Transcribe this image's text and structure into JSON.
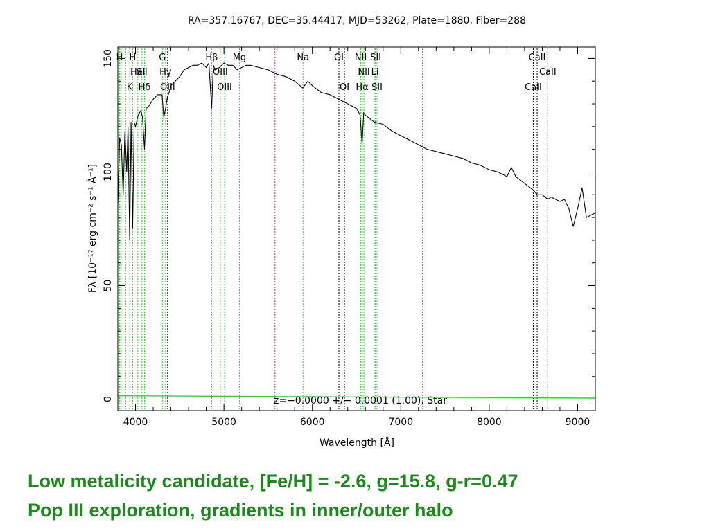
{
  "chart_data": {
    "type": "line",
    "title": "RA=357.16767, DEC=35.44417, MJD=53262, Plate=1880, Fiber=288",
    "xlabel": "Wavelength [Å]",
    "ylabel": "Fλ [10⁻¹⁷ erg cm⁻² s⁻¹ Å⁻¹]",
    "xlim": [
      3800,
      9200
    ],
    "ylim": [
      -5,
      155
    ],
    "x_ticks": [
      4000,
      5000,
      6000,
      7000,
      8000,
      9000
    ],
    "y_ticks": [
      0,
      50,
      100,
      150
    ],
    "annotation": "z=−0.0000 +/− 0.0001 (1.00), Star",
    "series": [
      {
        "color": "#000000",
        "x": [
          3800,
          3820,
          3840,
          3860,
          3880,
          3900,
          3915,
          3934,
          3950,
          3968,
          3985,
          4000,
          4030,
          4060,
          4080,
          4102,
          4120,
          4150,
          4200,
          4250,
          4300,
          4320,
          4340,
          4360,
          4380,
          4400,
          4450,
          4500,
          4550,
          4600,
          4650,
          4700,
          4750,
          4800,
          4830,
          4861,
          4880,
          4900,
          4950,
          5000,
          5050,
          5100,
          5150,
          5200,
          5250,
          5300,
          5400,
          5500,
          5600,
          5700,
          5800,
          5890,
          5950,
          6000,
          6100,
          6200,
          6300,
          6400,
          6500,
          6540,
          6563,
          6580,
          6600,
          6700,
          6800,
          6900,
          7000,
          7100,
          7200,
          7300,
          7400,
          7500,
          7600,
          7700,
          7800,
          7900,
          8000,
          8100,
          8200,
          8250,
          8300,
          8400,
          8500,
          8542,
          8600,
          8662,
          8700,
          8800,
          8850,
          8900,
          8950,
          9000,
          9050,
          9100,
          9150,
          9200
        ],
        "y": [
          85,
          115,
          112,
          90,
          118,
          100,
          120,
          70,
          122,
          75,
          122,
          120,
          125,
          127,
          124,
          110,
          128,
          129,
          132,
          134,
          134,
          124,
          128,
          133,
          135,
          138,
          140,
          142,
          145,
          146,
          147,
          147,
          148,
          146,
          148,
          128,
          147,
          145,
          146,
          148,
          147,
          147,
          145,
          146,
          147,
          147,
          146,
          145,
          143,
          142,
          140,
          137,
          140,
          138,
          135,
          134,
          132,
          130,
          128,
          125,
          112,
          126,
          125,
          122,
          121,
          118,
          116,
          114,
          112,
          110,
          109,
          108,
          107,
          106,
          104,
          103,
          101,
          100,
          98,
          102,
          98,
          95,
          92,
          90,
          90,
          88,
          89,
          87,
          88,
          84,
          76,
          84,
          93,
          80,
          81,
          82
        ]
      },
      {
        "color": "#33cc33",
        "x": [
          3800,
          9200
        ],
        "y": [
          1.5,
          0.5
        ]
      }
    ],
    "lines": [
      {
        "x": 3820,
        "label": "H",
        "row": 1,
        "color": "#33cc33"
      },
      {
        "x": 3835,
        "label": "",
        "row": 1,
        "color": "#33cc33"
      },
      {
        "x": 3889,
        "label": "",
        "row": 1,
        "color": "#33cc33"
      },
      {
        "x": 3934,
        "label": "K",
        "row": 3,
        "color": "#33cc33"
      },
      {
        "x": 3968,
        "label": "H",
        "row": 1,
        "color": "#33cc33"
      },
      {
        "x": 4026,
        "label": "HeI",
        "row": 2,
        "color": "#33cc33"
      },
      {
        "x": 4072,
        "label": "SII",
        "row": 2,
        "color": "#33cc33"
      },
      {
        "x": 4102,
        "label": "Hδ",
        "row": 3,
        "color": "#33cc33"
      },
      {
        "x": 4304,
        "label": "G",
        "row": 1,
        "color": "#33cc33"
      },
      {
        "x": 4340,
        "label": "Hγ",
        "row": 2,
        "color": "#33cc33"
      },
      {
        "x": 4363,
        "label": "OIII",
        "row": 3,
        "color": "#000000"
      },
      {
        "x": 4861,
        "label": "Hβ",
        "row": 1,
        "color": "#33cc33"
      },
      {
        "x": 4959,
        "label": "OIII",
        "row": 2,
        "color": "#33cc33"
      },
      {
        "x": 5007,
        "label": "OIII",
        "row": 3,
        "color": "#33cc33"
      },
      {
        "x": 5175,
        "label": "Mg",
        "row": 1,
        "color": "#33cc33"
      },
      {
        "x": 5577,
        "label": "",
        "row": 1,
        "color": "#cc33cc"
      },
      {
        "x": 5894,
        "label": "Na",
        "row": 1,
        "color": "#33cc33"
      },
      {
        "x": 6300,
        "label": "OI",
        "row": 1,
        "color": "#000000"
      },
      {
        "x": 6363,
        "label": "OI",
        "row": 3,
        "color": "#000000"
      },
      {
        "x": 6548,
        "label": "NII",
        "row": 1,
        "color": "#33cc33"
      },
      {
        "x": 6563,
        "label": "Hα",
        "row": 3,
        "color": "#33cc33"
      },
      {
        "x": 6583,
        "label": "NII",
        "row": 2,
        "color": "#33cc33"
      },
      {
        "x": 6708,
        "label": "Li",
        "row": 2,
        "color": "#33cc33"
      },
      {
        "x": 6716,
        "label": "SII",
        "row": 1,
        "color": "#33cc33"
      },
      {
        "x": 6731,
        "label": "SII",
        "row": 3,
        "color": "#33cc33"
      },
      {
        "x": 7246,
        "label": "",
        "row": 1,
        "color": "#cc33cc"
      },
      {
        "x": 8498,
        "label": "CaII",
        "row": 3,
        "color": "#000000"
      },
      {
        "x": 8542,
        "label": "CaII",
        "row": 1,
        "color": "#000000"
      },
      {
        "x": 8662,
        "label": "CaII",
        "row": 2,
        "color": "#000000"
      }
    ]
  },
  "caption": {
    "line1": "Low metalicity candidate,  [Fe/H] = -2.6, g=15.8, g-r=0.47",
    "line2": "Pop III exploration,  gradients in inner/outer halo"
  }
}
